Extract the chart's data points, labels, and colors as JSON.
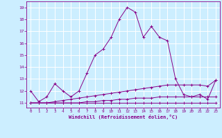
{
  "xlabel": "Windchill (Refroidissement éolien,°C)",
  "bg_color": "#cceeff",
  "grid_color": "#ffffff",
  "line_color": "#880088",
  "x_ticks": [
    0,
    1,
    2,
    3,
    4,
    5,
    6,
    7,
    8,
    9,
    10,
    11,
    12,
    13,
    14,
    15,
    16,
    17,
    18,
    19,
    20,
    21,
    22,
    23
  ],
  "y_ticks": [
    11,
    12,
    13,
    14,
    15,
    16,
    17,
    18,
    19
  ],
  "ylim": [
    10.6,
    19.5
  ],
  "xlim": [
    -0.5,
    23.5
  ],
  "series1": [
    12.0,
    11.1,
    11.5,
    12.6,
    12.0,
    11.5,
    12.0,
    13.5,
    15.0,
    15.5,
    16.5,
    18.0,
    19.0,
    18.6,
    16.5,
    17.4,
    16.5,
    16.2,
    13.0,
    11.7,
    11.5,
    11.7,
    11.3,
    12.9
  ],
  "series2": [
    11.0,
    11.0,
    11.0,
    11.1,
    11.2,
    11.3,
    11.4,
    11.5,
    11.6,
    11.7,
    11.8,
    11.9,
    12.0,
    12.1,
    12.2,
    12.3,
    12.4,
    12.5,
    12.5,
    12.5,
    12.5,
    12.5,
    12.4,
    12.9
  ],
  "series3": [
    11.0,
    11.0,
    11.0,
    11.0,
    11.0,
    11.0,
    11.0,
    11.1,
    11.1,
    11.2,
    11.2,
    11.3,
    11.3,
    11.4,
    11.4,
    11.4,
    11.5,
    11.5,
    11.5,
    11.5,
    11.5,
    11.5,
    11.5,
    11.5
  ],
  "series4": [
    11.0,
    11.0,
    11.0,
    11.0,
    11.0,
    11.0,
    11.0,
    11.0,
    11.0,
    11.0,
    11.0,
    11.0,
    11.0,
    11.0,
    11.0,
    11.0,
    11.0,
    11.0,
    11.0,
    11.0,
    11.0,
    11.0,
    11.0,
    11.0
  ]
}
